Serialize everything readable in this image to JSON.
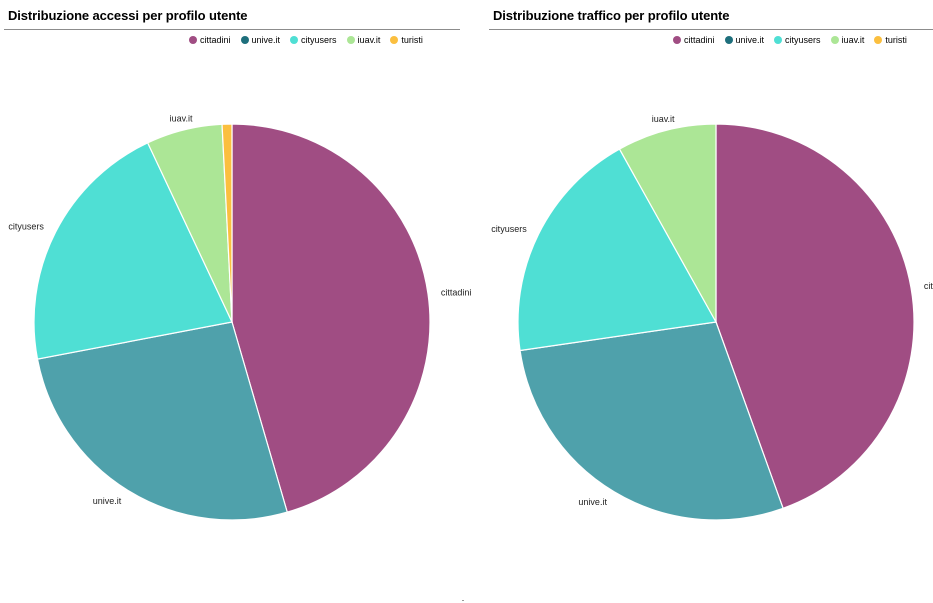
{
  "colors": {
    "cittadini": "#a04d83",
    "unive.it": "#4fa1ab",
    "cityusers": "#4fdfd4",
    "iuav.it": "#ace696",
    "turisti": "#fbbf3f",
    "legend_unive": "#1e6f7c"
  },
  "chart_data": [
    {
      "type": "pie",
      "title": "Distribuzione accessi per profilo utente",
      "legend": [
        "cittadini",
        "unive.it",
        "cityusers",
        "iuav.it",
        "turisti"
      ],
      "legend_position": "top-right",
      "slices": [
        {
          "label": "cittadini",
          "value": 45.5
        },
        {
          "label": "unive.it",
          "value": 26.5
        },
        {
          "label": "cityusers",
          "value": 21.0
        },
        {
          "label": "iuav.it",
          "value": 6.2
        },
        {
          "label": "turisti",
          "value": 0.8
        }
      ]
    },
    {
      "type": "pie",
      "title": "Distribuzione traffico per profilo utente",
      "legend": [
        "cittadini",
        "unive.it",
        "cityusers",
        "iuav.it",
        "turisti"
      ],
      "legend_position": "top-right",
      "slices": [
        {
          "label": "cittadini",
          "value": 44.5
        },
        {
          "label": "unive.it",
          "value": 28.2
        },
        {
          "label": "cityusers",
          "value": 19.2
        },
        {
          "label": "iuav.it",
          "value": 8.1
        },
        {
          "label": "turisti",
          "value": 0.0
        }
      ],
      "clipped_label": "cittad"
    }
  ]
}
